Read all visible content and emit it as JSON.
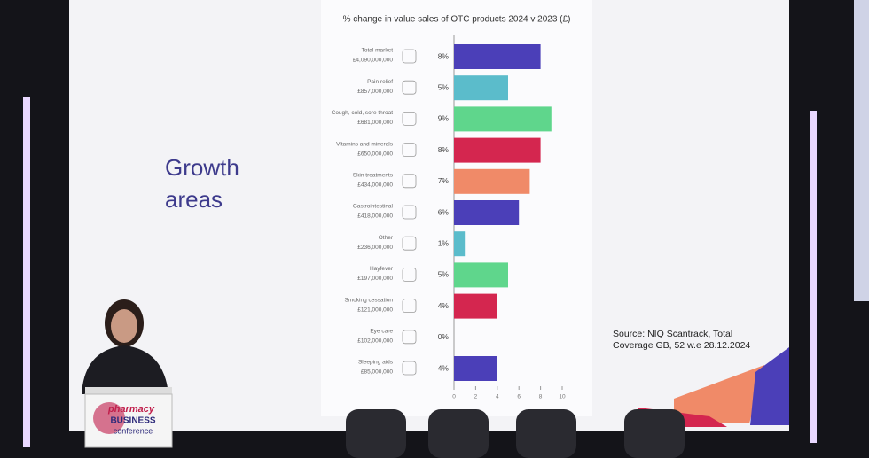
{
  "chart_data": {
    "type": "barh",
    "title": "% change in value sales of OTC products 2024 v 2023 (£)",
    "categories": [
      "Total market",
      "Pain relief",
      "Cough, cold, sore throat",
      "Vitamins and minerals",
      "Skin treatments",
      "Gastrointestinal",
      "Other",
      "Hayfever",
      "Smoking cessation",
      "Eye care",
      "Sleeping aids"
    ],
    "sales": [
      "£4,090,000,000",
      "£857,000,000",
      "£681,000,000",
      "£650,000,000",
      "£434,000,000",
      "£418,000,000",
      "£236,000,000",
      "£197,000,000",
      "£121,000,000",
      "£102,000,000",
      "£85,000,000"
    ],
    "values": [
      8,
      5,
      9,
      8,
      7,
      6,
      1,
      5,
      4,
      0,
      4
    ],
    "value_labels": [
      "8%",
      "5%",
      "9%",
      "8%",
      "7%",
      "6%",
      "1%",
      "5%",
      "4%",
      "0%",
      "4%"
    ],
    "colors": [
      "#4b3fb8",
      "#5bbccb",
      "#5fd68c",
      "#d4264f",
      "#f08a68",
      "#4b3fb8",
      "#5bbccb",
      "#5fd68c",
      "#d4264f",
      "#4b3fb8",
      "#4b3fb8"
    ],
    "xlim": [
      0,
      10
    ],
    "xticks": [
      0,
      2,
      4,
      6,
      8,
      10
    ]
  },
  "slide": {
    "heading": [
      "Growth",
      "areas"
    ],
    "source": [
      "Source: NIQ Scantrack, Total",
      "Coverage GB, 52 w.e 28.12.2024"
    ]
  },
  "podium": {
    "logo": [
      "pharmacy",
      "BUSINESS",
      "conference"
    ]
  }
}
